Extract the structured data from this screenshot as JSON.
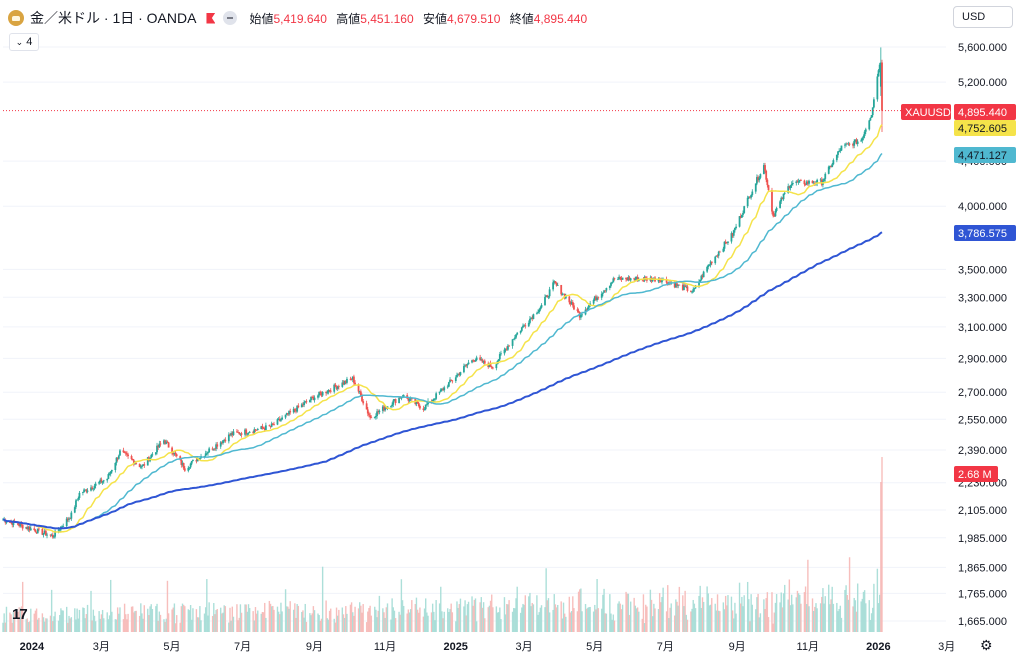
{
  "header": {
    "symbol_title": "金／米ドル · 1日 · OANDA",
    "open_label": "始値",
    "open_value": "5,419.640",
    "high_label": "高値",
    "high_value": "5,451.160",
    "low_label": "安値",
    "low_value": "4,679.510",
    "close_label": "終値",
    "close_value": "4,895.440"
  },
  "indicators_button": {
    "label": "4"
  },
  "currency_select": {
    "selected": "USD"
  },
  "chart_data": {
    "type": "candlestick",
    "symbol": "XAUUSD",
    "price_axis_ticks": [
      1665,
      1765,
      1865,
      1985,
      2105,
      2230,
      2390,
      2550,
      2700,
      2900,
      3100,
      3300,
      3500,
      4000,
      4400,
      5200,
      5600
    ],
    "price_axis_labels": [
      "1,665.000",
      "1,765.000",
      "1,865.000",
      "1,985.000",
      "2,105.000",
      "2,230.000",
      "2,390.000",
      "2,550.000",
      "2,700.000",
      "2,900.000",
      "3,100.000",
      "3,300.000",
      "3,500.000",
      "4,000.000",
      "4,400.000",
      "5,200.000",
      "5,600.000"
    ],
    "time_axis_labels": [
      "2024",
      "3月",
      "5月",
      "7月",
      "9月",
      "11月",
      "2025",
      "3月",
      "5月",
      "7月",
      "9月",
      "11月",
      "2026",
      "3月"
    ],
    "time_axis_bold": [
      "2024",
      "2025",
      "2026"
    ],
    "series": [
      {
        "name": "XAUUSD",
        "kind": "candles"
      },
      {
        "name": "MA short",
        "kind": "line",
        "color": "#f5e34a"
      },
      {
        "name": "MA mid",
        "kind": "line",
        "color": "#4fb8d0"
      },
      {
        "name": "MA long",
        "kind": "line",
        "color": "#2f55d4"
      }
    ],
    "price_path": [
      {
        "d": "2024-01-02",
        "v": 2063
      },
      {
        "d": "2024-02-14",
        "v": 1992
      },
      {
        "d": "2024-03-01",
        "v": 2083
      },
      {
        "d": "2024-03-08",
        "v": 2180
      },
      {
        "d": "2024-04-01",
        "v": 2250
      },
      {
        "d": "2024-04-12",
        "v": 2380
      },
      {
        "d": "2024-05-01",
        "v": 2305
      },
      {
        "d": "2024-05-20",
        "v": 2440
      },
      {
        "d": "2024-06-07",
        "v": 2300
      },
      {
        "d": "2024-07-17",
        "v": 2470
      },
      {
        "d": "2024-08-20",
        "v": 2510
      },
      {
        "d": "2024-09-26",
        "v": 2670
      },
      {
        "d": "2024-10-30",
        "v": 2780
      },
      {
        "d": "2024-11-14",
        "v": 2560
      },
      {
        "d": "2024-12-12",
        "v": 2680
      },
      {
        "d": "2024-12-30",
        "v": 2610
      },
      {
        "d": "2025-01-24",
        "v": 2770
      },
      {
        "d": "2025-02-11",
        "v": 2900
      },
      {
        "d": "2025-02-28",
        "v": 2850
      },
      {
        "d": "2025-03-20",
        "v": 3050
      },
      {
        "d": "2025-04-11",
        "v": 3240
      },
      {
        "d": "2025-04-22",
        "v": 3400
      },
      {
        "d": "2025-05-14",
        "v": 3180
      },
      {
        "d": "2025-06-13",
        "v": 3430
      },
      {
        "d": "2025-07-22",
        "v": 3430
      },
      {
        "d": "2025-08-20",
        "v": 3340
      },
      {
        "d": "2025-09-02",
        "v": 3530
      },
      {
        "d": "2025-09-23",
        "v": 3770
      },
      {
        "d": "2025-10-20",
        "v": 4360
      },
      {
        "d": "2025-10-28",
        "v": 3920
      },
      {
        "d": "2025-11-12",
        "v": 4200
      },
      {
        "d": "2025-12-09",
        "v": 4210
      },
      {
        "d": "2025-12-26",
        "v": 4530
      },
      {
        "d": "2026-01-12",
        "v": 4600
      },
      {
        "d": "2026-01-21",
        "v": 4870
      },
      {
        "d": "2026-01-28",
        "v": 5420
      },
      {
        "d": "2026-01-30",
        "v": 4895
      }
    ],
    "last_candle": {
      "open": 5419.64,
      "high": 5451.16,
      "low": 4679.51,
      "close": 4895.44
    },
    "highest_high": 5595,
    "price_labels": [
      {
        "text": "XAUUSD",
        "bg": "#f23645",
        "color": "#ffffff"
      },
      {
        "text": "4,895.440",
        "value": 4895.44,
        "bg": "#f23645",
        "color": "#ffffff"
      },
      {
        "text": "4,752.605",
        "value": 4752.605,
        "bg": "#f5e34a",
        "color": "#131722"
      },
      {
        "text": "4,471.127",
        "value": 4471.127,
        "bg": "#4fb8d0",
        "color": "#131722"
      },
      {
        "text": "3,786.575",
        "value": 3786.575,
        "bg": "#2f55d4",
        "color": "#ffffff"
      },
      {
        "text": "2.68 M",
        "bg": "#f23645",
        "color": "#ffffff"
      }
    ],
    "volume_last": "2.68 M",
    "colors": {
      "up": "#26a69a",
      "down": "#ef5350",
      "grid": "#f0f3fa",
      "axis_text": "#131722"
    }
  }
}
